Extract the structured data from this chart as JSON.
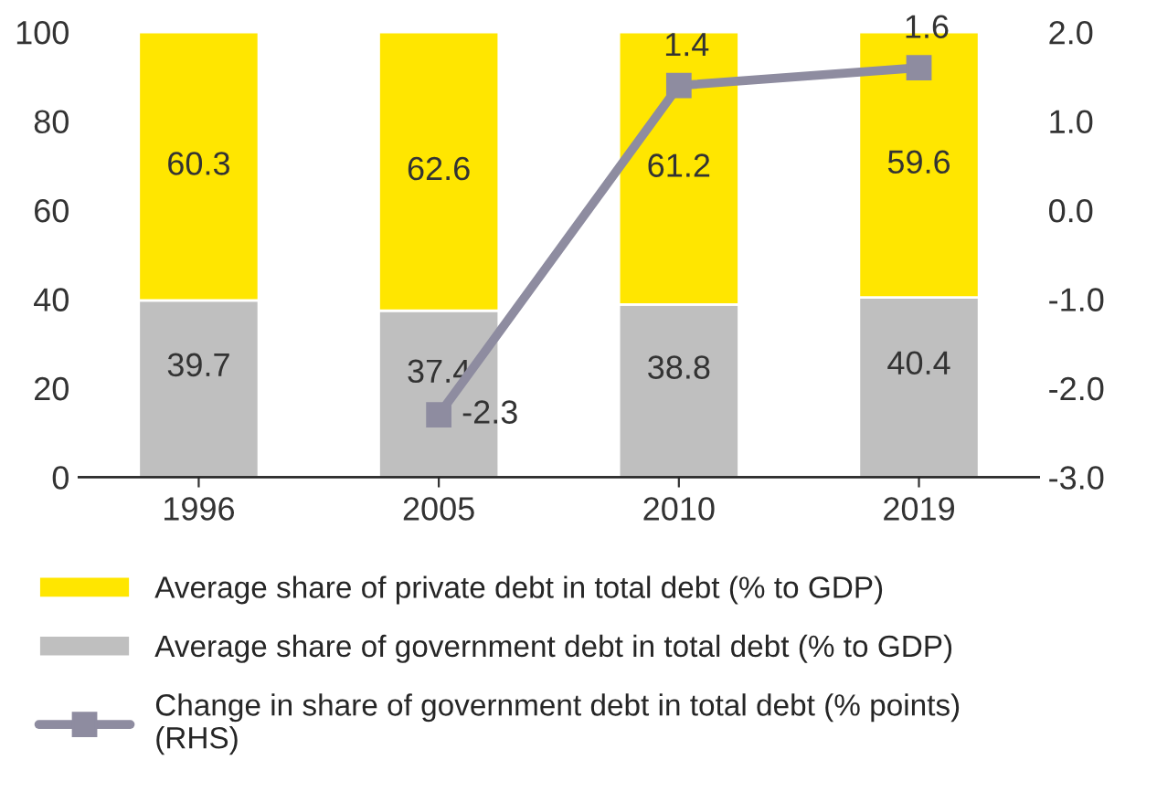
{
  "chart_data": {
    "type": "bar",
    "stacked": true,
    "categories": [
      "1996",
      "2005",
      "2010",
      "2019"
    ],
    "series": [
      {
        "name": "Average share of government debt in total debt (% to GDP)",
        "color": "#bfbfbf",
        "values": [
          39.7,
          37.4,
          38.8,
          40.4
        ]
      },
      {
        "name": "Average share of private debt in total debt (% to GDP)",
        "color": "#ffe600",
        "values": [
          60.3,
          62.6,
          61.2,
          59.6
        ]
      },
      {
        "name": "Change in share of government debt in total debt (% points)\n(RHS)",
        "type": "line",
        "axis": "y2",
        "color": "#8e8ca0",
        "marker": "square",
        "values": [
          null,
          -2.3,
          1.4,
          1.6
        ]
      }
    ],
    "ylim": [
      0,
      100
    ],
    "yticks": [
      0,
      20,
      40,
      60,
      80,
      100
    ],
    "y2lim": [
      -3,
      2
    ],
    "y2ticks": [
      {
        "value": -3,
        "label": "-3.0"
      },
      {
        "value": -2,
        "label": "-2.0"
      },
      {
        "value": -1,
        "label": "-1.0"
      },
      {
        "value": 0,
        "label": "0.0"
      },
      {
        "value": 1,
        "label": "1.0"
      },
      {
        "value": 2,
        "label": "2.0"
      }
    ],
    "data_labels": true,
    "grid": false,
    "legend": "bottom"
  }
}
